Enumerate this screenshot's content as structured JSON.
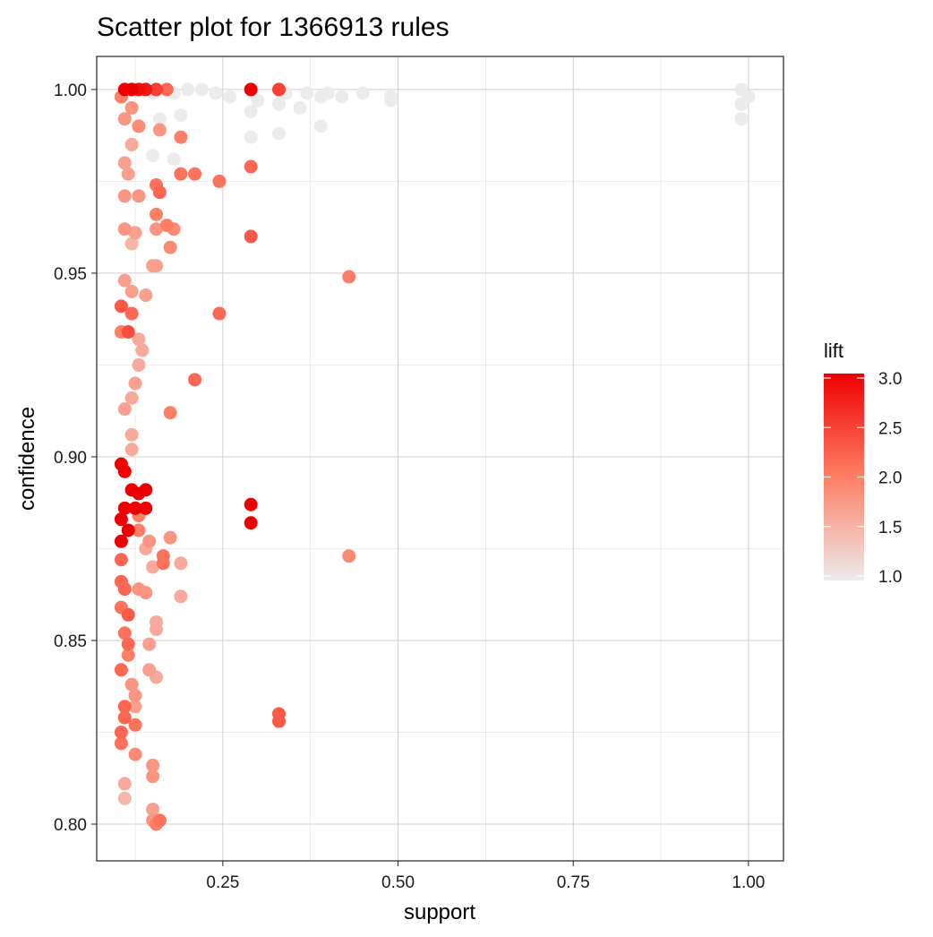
{
  "chart_data": {
    "type": "scatter",
    "title": "Scatter plot for 1366913 rules",
    "xlabel": "support",
    "ylabel": "confidence",
    "xlim": [
      0.07,
      1.05
    ],
    "ylim": [
      0.79,
      1.009
    ],
    "x_ticks": [
      0.25,
      0.5,
      0.75,
      1.0
    ],
    "x_tick_labels": [
      "0.25",
      "0.50",
      "0.75",
      "1.00"
    ],
    "y_ticks": [
      0.8,
      0.85,
      0.9,
      0.95,
      1.0
    ],
    "y_tick_labels": [
      "0.80",
      "0.85",
      "0.90",
      "0.95",
      "1.00"
    ],
    "grid": true,
    "color_scale": {
      "title": "lift",
      "min": 1.0,
      "max": 3.0,
      "low_color": "#ebebeb",
      "mid_color": "#ff7f66",
      "high_color": "#ee0000",
      "ticks": [
        1.0,
        1.5,
        2.0,
        2.5,
        3.0
      ],
      "tick_labels": [
        "1.0",
        "1.5",
        "2.0",
        "2.5",
        "3.0"
      ]
    },
    "legend_position": "right",
    "points": [
      {
        "x": 0.11,
        "y": 1.0,
        "lift": 3.0
      },
      {
        "x": 0.12,
        "y": 1.0,
        "lift": 3.0
      },
      {
        "x": 0.13,
        "y": 1.0,
        "lift": 2.9
      },
      {
        "x": 0.14,
        "y": 1.0,
        "lift": 2.8
      },
      {
        "x": 0.155,
        "y": 1.0,
        "lift": 2.5
      },
      {
        "x": 0.17,
        "y": 1.0,
        "lift": 2.2
      },
      {
        "x": 0.29,
        "y": 1.0,
        "lift": 3.0
      },
      {
        "x": 0.33,
        "y": 1.0,
        "lift": 2.5
      },
      {
        "x": 0.15,
        "y": 0.999,
        "lift": 1.0
      },
      {
        "x": 0.18,
        "y": 0.999,
        "lift": 1.0
      },
      {
        "x": 0.2,
        "y": 1.0,
        "lift": 1.0
      },
      {
        "x": 0.22,
        "y": 1.0,
        "lift": 1.0
      },
      {
        "x": 0.24,
        "y": 0.999,
        "lift": 1.0
      },
      {
        "x": 0.26,
        "y": 0.998,
        "lift": 1.0
      },
      {
        "x": 0.3,
        "y": 0.997,
        "lift": 1.0
      },
      {
        "x": 0.29,
        "y": 0.994,
        "lift": 1.0
      },
      {
        "x": 0.33,
        "y": 0.996,
        "lift": 1.0
      },
      {
        "x": 0.33,
        "y": 0.988,
        "lift": 1.0
      },
      {
        "x": 0.34,
        "y": 0.999,
        "lift": 1.0
      },
      {
        "x": 0.37,
        "y": 0.999,
        "lift": 1.0
      },
      {
        "x": 0.36,
        "y": 0.995,
        "lift": 1.0
      },
      {
        "x": 0.39,
        "y": 0.998,
        "lift": 1.0
      },
      {
        "x": 0.4,
        "y": 0.999,
        "lift": 1.0
      },
      {
        "x": 0.39,
        "y": 0.99,
        "lift": 1.0
      },
      {
        "x": 0.42,
        "y": 0.998,
        "lift": 1.0
      },
      {
        "x": 0.45,
        "y": 0.999,
        "lift": 1.0
      },
      {
        "x": 0.49,
        "y": 0.998,
        "lift": 1.0
      },
      {
        "x": 0.49,
        "y": 0.997,
        "lift": 1.0
      },
      {
        "x": 0.19,
        "y": 0.993,
        "lift": 1.0
      },
      {
        "x": 0.16,
        "y": 0.992,
        "lift": 1.0
      },
      {
        "x": 0.18,
        "y": 0.981,
        "lift": 1.0
      },
      {
        "x": 0.15,
        "y": 0.982,
        "lift": 1.0
      },
      {
        "x": 0.29,
        "y": 0.987,
        "lift": 1.0
      },
      {
        "x": 0.99,
        "y": 1.0,
        "lift": 1.0
      },
      {
        "x": 1.0,
        "y": 0.998,
        "lift": 1.0
      },
      {
        "x": 0.99,
        "y": 0.996,
        "lift": 1.0
      },
      {
        "x": 0.99,
        "y": 0.992,
        "lift": 1.0
      },
      {
        "x": 0.105,
        "y": 0.998,
        "lift": 2.0
      },
      {
        "x": 0.12,
        "y": 0.995,
        "lift": 1.8
      },
      {
        "x": 0.11,
        "y": 0.992,
        "lift": 1.8
      },
      {
        "x": 0.13,
        "y": 0.99,
        "lift": 1.9
      },
      {
        "x": 0.16,
        "y": 0.989,
        "lift": 1.8
      },
      {
        "x": 0.19,
        "y": 0.987,
        "lift": 2.0
      },
      {
        "x": 0.12,
        "y": 0.985,
        "lift": 1.6
      },
      {
        "x": 0.11,
        "y": 0.98,
        "lift": 1.7
      },
      {
        "x": 0.115,
        "y": 0.977,
        "lift": 1.7
      },
      {
        "x": 0.19,
        "y": 0.977,
        "lift": 2.1
      },
      {
        "x": 0.21,
        "y": 0.977,
        "lift": 2.1
      },
      {
        "x": 0.245,
        "y": 0.975,
        "lift": 2.1
      },
      {
        "x": 0.29,
        "y": 0.979,
        "lift": 2.2
      },
      {
        "x": 0.155,
        "y": 0.974,
        "lift": 2.1
      },
      {
        "x": 0.11,
        "y": 0.971,
        "lift": 1.8
      },
      {
        "x": 0.13,
        "y": 0.971,
        "lift": 1.8
      },
      {
        "x": 0.16,
        "y": 0.972,
        "lift": 2.2
      },
      {
        "x": 0.155,
        "y": 0.966,
        "lift": 2.0
      },
      {
        "x": 0.11,
        "y": 0.962,
        "lift": 1.8
      },
      {
        "x": 0.125,
        "y": 0.961,
        "lift": 1.7
      },
      {
        "x": 0.17,
        "y": 0.963,
        "lift": 2.0
      },
      {
        "x": 0.155,
        "y": 0.962,
        "lift": 1.8
      },
      {
        "x": 0.18,
        "y": 0.962,
        "lift": 1.9
      },
      {
        "x": 0.12,
        "y": 0.958,
        "lift": 1.5
      },
      {
        "x": 0.175,
        "y": 0.957,
        "lift": 1.9
      },
      {
        "x": 0.29,
        "y": 0.96,
        "lift": 2.3
      },
      {
        "x": 0.155,
        "y": 0.952,
        "lift": 1.7
      },
      {
        "x": 0.15,
        "y": 0.952,
        "lift": 1.7
      },
      {
        "x": 0.43,
        "y": 0.949,
        "lift": 2.0
      },
      {
        "x": 0.11,
        "y": 0.948,
        "lift": 1.7
      },
      {
        "x": 0.12,
        "y": 0.945,
        "lift": 1.7
      },
      {
        "x": 0.14,
        "y": 0.944,
        "lift": 1.7
      },
      {
        "x": 0.105,
        "y": 0.941,
        "lift": 2.3
      },
      {
        "x": 0.12,
        "y": 0.939,
        "lift": 2.2
      },
      {
        "x": 0.245,
        "y": 0.939,
        "lift": 2.2
      },
      {
        "x": 0.105,
        "y": 0.934,
        "lift": 2.0
      },
      {
        "x": 0.115,
        "y": 0.934,
        "lift": 2.4
      },
      {
        "x": 0.13,
        "y": 0.932,
        "lift": 1.6
      },
      {
        "x": 0.135,
        "y": 0.929,
        "lift": 1.6
      },
      {
        "x": 0.13,
        "y": 0.925,
        "lift": 1.6
      },
      {
        "x": 0.21,
        "y": 0.921,
        "lift": 2.2
      },
      {
        "x": 0.125,
        "y": 0.92,
        "lift": 1.7
      },
      {
        "x": 0.12,
        "y": 0.916,
        "lift": 1.6
      },
      {
        "x": 0.11,
        "y": 0.913,
        "lift": 1.7
      },
      {
        "x": 0.175,
        "y": 0.912,
        "lift": 2.0
      },
      {
        "x": 0.12,
        "y": 0.906,
        "lift": 1.6
      },
      {
        "x": 0.12,
        "y": 0.902,
        "lift": 1.6
      },
      {
        "x": 0.105,
        "y": 0.898,
        "lift": 3.0
      },
      {
        "x": 0.11,
        "y": 0.896,
        "lift": 3.0
      },
      {
        "x": 0.12,
        "y": 0.891,
        "lift": 3.0
      },
      {
        "x": 0.13,
        "y": 0.89,
        "lift": 3.0
      },
      {
        "x": 0.14,
        "y": 0.891,
        "lift": 3.0
      },
      {
        "x": 0.11,
        "y": 0.886,
        "lift": 3.0
      },
      {
        "x": 0.125,
        "y": 0.886,
        "lift": 3.0
      },
      {
        "x": 0.14,
        "y": 0.886,
        "lift": 3.0
      },
      {
        "x": 0.105,
        "y": 0.883,
        "lift": 3.0
      },
      {
        "x": 0.115,
        "y": 0.88,
        "lift": 3.0
      },
      {
        "x": 0.105,
        "y": 0.877,
        "lift": 3.0
      },
      {
        "x": 0.13,
        "y": 0.884,
        "lift": 2.0
      },
      {
        "x": 0.13,
        "y": 0.88,
        "lift": 2.0
      },
      {
        "x": 0.29,
        "y": 0.887,
        "lift": 3.0
      },
      {
        "x": 0.29,
        "y": 0.882,
        "lift": 3.0
      },
      {
        "x": 0.145,
        "y": 0.877,
        "lift": 1.8
      },
      {
        "x": 0.175,
        "y": 0.878,
        "lift": 1.8
      },
      {
        "x": 0.14,
        "y": 0.875,
        "lift": 1.6
      },
      {
        "x": 0.165,
        "y": 0.873,
        "lift": 2.1
      },
      {
        "x": 0.165,
        "y": 0.871,
        "lift": 2.1
      },
      {
        "x": 0.43,
        "y": 0.873,
        "lift": 1.9
      },
      {
        "x": 0.105,
        "y": 0.872,
        "lift": 2.2
      },
      {
        "x": 0.19,
        "y": 0.871,
        "lift": 1.6
      },
      {
        "x": 0.15,
        "y": 0.87,
        "lift": 1.6
      },
      {
        "x": 0.105,
        "y": 0.866,
        "lift": 2.2
      },
      {
        "x": 0.13,
        "y": 0.864,
        "lift": 1.8
      },
      {
        "x": 0.14,
        "y": 0.863,
        "lift": 1.8
      },
      {
        "x": 0.19,
        "y": 0.862,
        "lift": 1.6
      },
      {
        "x": 0.11,
        "y": 0.864,
        "lift": 2.2
      },
      {
        "x": 0.105,
        "y": 0.859,
        "lift": 2.1
      },
      {
        "x": 0.115,
        "y": 0.857,
        "lift": 2.3
      },
      {
        "x": 0.155,
        "y": 0.855,
        "lift": 1.6
      },
      {
        "x": 0.155,
        "y": 0.853,
        "lift": 1.6
      },
      {
        "x": 0.11,
        "y": 0.852,
        "lift": 2.1
      },
      {
        "x": 0.115,
        "y": 0.849,
        "lift": 2.2
      },
      {
        "x": 0.145,
        "y": 0.849,
        "lift": 1.7
      },
      {
        "x": 0.115,
        "y": 0.846,
        "lift": 2.0
      },
      {
        "x": 0.105,
        "y": 0.842,
        "lift": 2.2
      },
      {
        "x": 0.145,
        "y": 0.842,
        "lift": 1.7
      },
      {
        "x": 0.155,
        "y": 0.84,
        "lift": 1.6
      },
      {
        "x": 0.12,
        "y": 0.838,
        "lift": 1.8
      },
      {
        "x": 0.125,
        "y": 0.835,
        "lift": 1.8
      },
      {
        "x": 0.125,
        "y": 0.832,
        "lift": 1.7
      },
      {
        "x": 0.11,
        "y": 0.832,
        "lift": 2.2
      },
      {
        "x": 0.11,
        "y": 0.829,
        "lift": 2.2
      },
      {
        "x": 0.33,
        "y": 0.83,
        "lift": 2.3
      },
      {
        "x": 0.33,
        "y": 0.828,
        "lift": 2.3
      },
      {
        "x": 0.105,
        "y": 0.825,
        "lift": 2.2
      },
      {
        "x": 0.125,
        "y": 0.827,
        "lift": 2.1
      },
      {
        "x": 0.105,
        "y": 0.822,
        "lift": 2.1
      },
      {
        "x": 0.125,
        "y": 0.819,
        "lift": 1.9
      },
      {
        "x": 0.15,
        "y": 0.816,
        "lift": 1.8
      },
      {
        "x": 0.15,
        "y": 0.813,
        "lift": 1.8
      },
      {
        "x": 0.11,
        "y": 0.811,
        "lift": 1.6
      },
      {
        "x": 0.11,
        "y": 0.807,
        "lift": 1.5
      },
      {
        "x": 0.15,
        "y": 0.804,
        "lift": 1.7
      },
      {
        "x": 0.15,
        "y": 0.801,
        "lift": 1.8
      },
      {
        "x": 0.16,
        "y": 0.801,
        "lift": 2.1
      },
      {
        "x": 0.155,
        "y": 0.8,
        "lift": 2.0
      }
    ]
  }
}
